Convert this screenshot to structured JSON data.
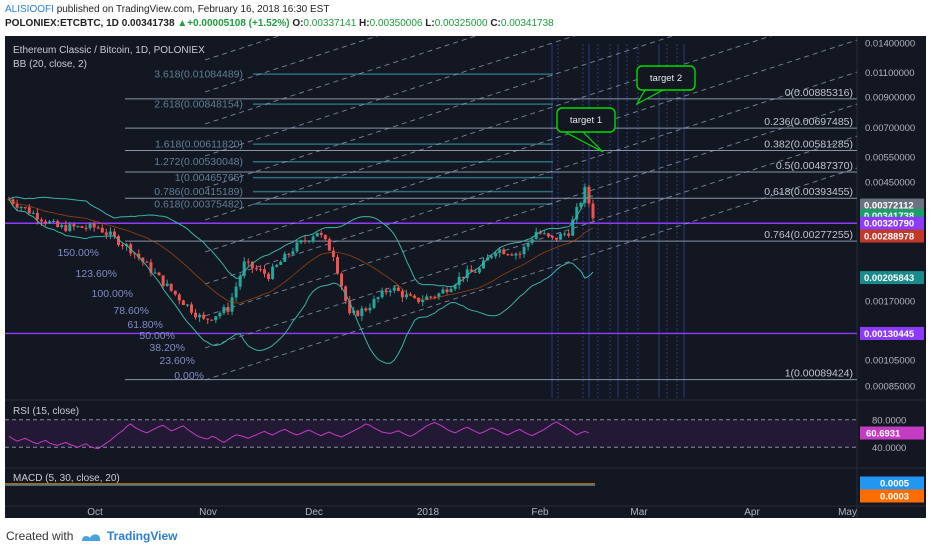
{
  "header": {
    "author": "ALISIOOFI",
    "published_text": "published on TradingView.com, February 16, 2018 16:30 EST",
    "symbol": "POLONIEX:ETCBTC, 1D",
    "last": "0.00341738",
    "change_arrow": "▲",
    "change": "+0.00005108 (+1.52%)",
    "o_label": "O:",
    "o_value": "0.00337141",
    "h_label": "H:",
    "h_value": "0.00350006",
    "l_label": "L:",
    "l_value": "0.00325000",
    "c_label": "C:",
    "c_value": "0.00341738"
  },
  "chart_title": "Ethereum Classic / Bitcoin, 1D, POLONIEX",
  "bb_label": "BB (20, close, 2)",
  "rsi_label": "RSI (15, close)",
  "macd_label": "MACD (5, 30, close, 20)",
  "footer": {
    "created": "Created with",
    "brand": "TradingView"
  },
  "colors": {
    "background": "#131722",
    "up_candle": "#26a69a",
    "down_candle": "#ef5350",
    "bollinger": "#3bb3a6",
    "fib_retracement": "#8a94a6",
    "fib_extension": "#2e7a84",
    "channel": "#9ea7c4",
    "purple_line": "#8d3cff",
    "callout": "#00dd00",
    "rsi_line": "#c33cc2",
    "macd_line": "#ff9800"
  },
  "chart_data": {
    "type": "candlestick",
    "x_axis_ticks": [
      "Oct",
      "Nov",
      "Dec",
      "2018",
      "Feb",
      "Mar",
      "Apr",
      "May"
    ],
    "y_axis": {
      "scale": "log",
      "ticks": [
        "0.01400000",
        "0.01100000",
        "0.00900000",
        "0.00700000",
        "0.00550000",
        "0.00450000",
        "0.00170000",
        "0.00105000",
        "0.00085000"
      ],
      "ylim": [
        0.00077,
        0.0148
      ]
    },
    "price_labels": [
      {
        "text": "0.00372112",
        "value": 0.00372112,
        "color": "#6b7280"
      },
      {
        "text": "0.00341738",
        "value": 0.00341738,
        "color": "#1a9e6a"
      },
      {
        "text": "0.00320790",
        "value": 0.0032079,
        "color": "#8d3cff"
      },
      {
        "text": "0.00288978",
        "value": 0.00288978,
        "color": "#c0392b"
      },
      {
        "text": "0.00205843",
        "value": 0.00205843,
        "color": "#1a8a8a"
      },
      {
        "text": "0.00130445",
        "value": 0.00130445,
        "color": "#8d3cff"
      }
    ],
    "fib_retracement": [
      {
        "label": "0(0.00885316)",
        "value": 0.00885316
      },
      {
        "label": "0.236(0.00697485)",
        "value": 0.00697485
      },
      {
        "label": "0.382(0.00581285)",
        "value": 0.00581285
      },
      {
        "label": "0.5(0.00487370)",
        "value": 0.0048737
      },
      {
        "label": "0.618(0.00393455)",
        "value": 0.00393455
      },
      {
        "label": "0.764(0.00277255)",
        "value": 0.00277255
      },
      {
        "label": "1(0.00089424)",
        "value": 0.00089424
      }
    ],
    "fib_extension": [
      {
        "label": "3.618(0.01084489)",
        "value": 0.01084489
      },
      {
        "label": "2.618(0.00848154)",
        "value": 0.00848154
      },
      {
        "label": "1.618(0.00611820)",
        "value": 0.0061182
      },
      {
        "label": "1.272(0.00530048)",
        "value": 0.00530048
      },
      {
        "label": "1(0.00465765)",
        "value": 0.00465765
      },
      {
        "label": "0.786(0.00415189)",
        "value": 0.00415189
      },
      {
        "label": "0.618(0.00375482)",
        "value": 0.00375482
      }
    ],
    "channel_levels": [
      "150.00%",
      "123.60%",
      "100.00%",
      "78.60%",
      "61.80%",
      "50.00%",
      "38.20%",
      "23.60%",
      "0.00%"
    ],
    "callouts": [
      "target 1",
      "target 2"
    ],
    "rsi": {
      "ticks": [
        "80.0000",
        "40.0000"
      ],
      "value_label": "60.6931",
      "series": [
        56,
        52,
        49,
        51,
        53,
        50,
        47,
        45,
        48,
        50,
        46,
        44,
        43,
        45,
        47,
        44,
        42,
        40,
        43,
        45,
        41,
        39,
        38,
        42,
        46,
        50,
        55,
        60,
        64,
        70,
        74,
        69,
        66,
        63,
        61,
        64,
        67,
        70,
        72,
        68,
        64,
        66,
        69,
        71,
        66,
        62,
        58,
        55,
        53,
        52,
        56,
        54,
        50,
        47,
        51,
        55,
        58,
        57,
        55,
        53,
        56,
        58,
        61,
        63,
        60,
        58,
        61,
        64,
        66,
        63,
        60,
        58,
        60,
        63,
        65,
        62,
        59,
        57,
        60,
        62,
        59,
        57,
        55,
        58,
        61,
        64,
        67,
        70,
        74,
        72,
        68,
        65,
        62,
        61,
        60,
        62,
        64,
        61,
        58,
        56,
        59,
        63,
        67,
        71,
        74,
        76,
        73,
        70,
        66,
        63,
        61,
        64,
        67,
        69,
        66,
        63,
        60,
        62,
        65,
        68,
        66,
        63,
        60,
        58,
        61,
        64,
        66,
        62,
        59,
        57,
        60,
        63,
        66,
        70,
        74,
        77,
        73,
        70,
        66,
        62,
        58,
        61,
        63,
        61
      ]
    },
    "macd": {
      "labels": [
        {
          "text": "0.0005",
          "color": "#2196f3"
        },
        {
          "text": "0.0003",
          "color": "#ff6d00"
        }
      ]
    }
  }
}
